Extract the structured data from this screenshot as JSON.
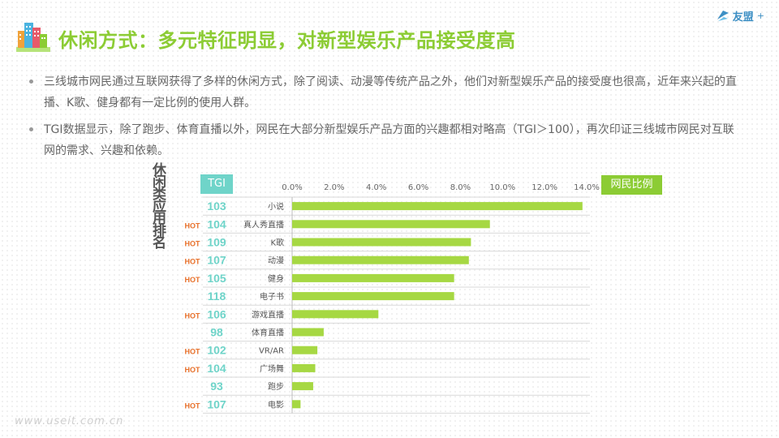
{
  "header": {
    "title": "休闲方式：多元特征明显，对新型娱乐产品接受度高",
    "brand": "友盟",
    "brand_plus": "+"
  },
  "bullets": [
    "三线城市网民通过互联网获得了多样的休闲方式，除了阅读、动漫等传统产品之外，他们对新型娱乐产品的接受度也很高，近年来兴起的直播、K歌、健身都有一定比例的使用人群。",
    "TGI数据显示，除了跑步、体育直播以外，网民在大部分新型娱乐产品方面的兴趣都相对略高（TGI＞100），再次印证三线城市网民对互联网的需求、兴趣和依赖。"
  ],
  "side_title": "休闲类应用排名",
  "tgi_header": "TGI",
  "ratio_header": "网民比例",
  "hot_label": "HOT",
  "watermark": "www.useit.com.cn",
  "colors": {
    "bar": "#a6d843",
    "tgi_text": "#6fd4c9",
    "hot": "#e8702a",
    "title": "#8ccc34"
  },
  "chart_data": {
    "type": "bar",
    "orientation": "horizontal",
    "categories": [
      "小说",
      "真人秀直播",
      "K歌",
      "动漫",
      "健身",
      "电子书",
      "游戏直播",
      "体育直播",
      "VR/AR",
      "广场舞",
      "跑步",
      "电影"
    ],
    "values": [
      13.8,
      9.4,
      8.5,
      8.4,
      7.7,
      7.7,
      4.1,
      1.5,
      1.2,
      1.1,
      1.0,
      0.4
    ],
    "tgi": [
      103,
      104,
      109,
      107,
      105,
      118,
      106,
      98,
      102,
      104,
      93,
      107
    ],
    "hot": [
      false,
      true,
      true,
      true,
      true,
      false,
      true,
      false,
      true,
      true,
      false,
      true
    ],
    "xlim": [
      0,
      14
    ],
    "xticks": [
      0,
      2,
      4,
      6,
      8,
      10,
      12,
      14
    ],
    "tick_labels": [
      "0.0%",
      "2.0%",
      "4.0%",
      "6.0%",
      "8.0%",
      "10.0%",
      "12.0%",
      "14.0%"
    ],
    "grid": true
  }
}
